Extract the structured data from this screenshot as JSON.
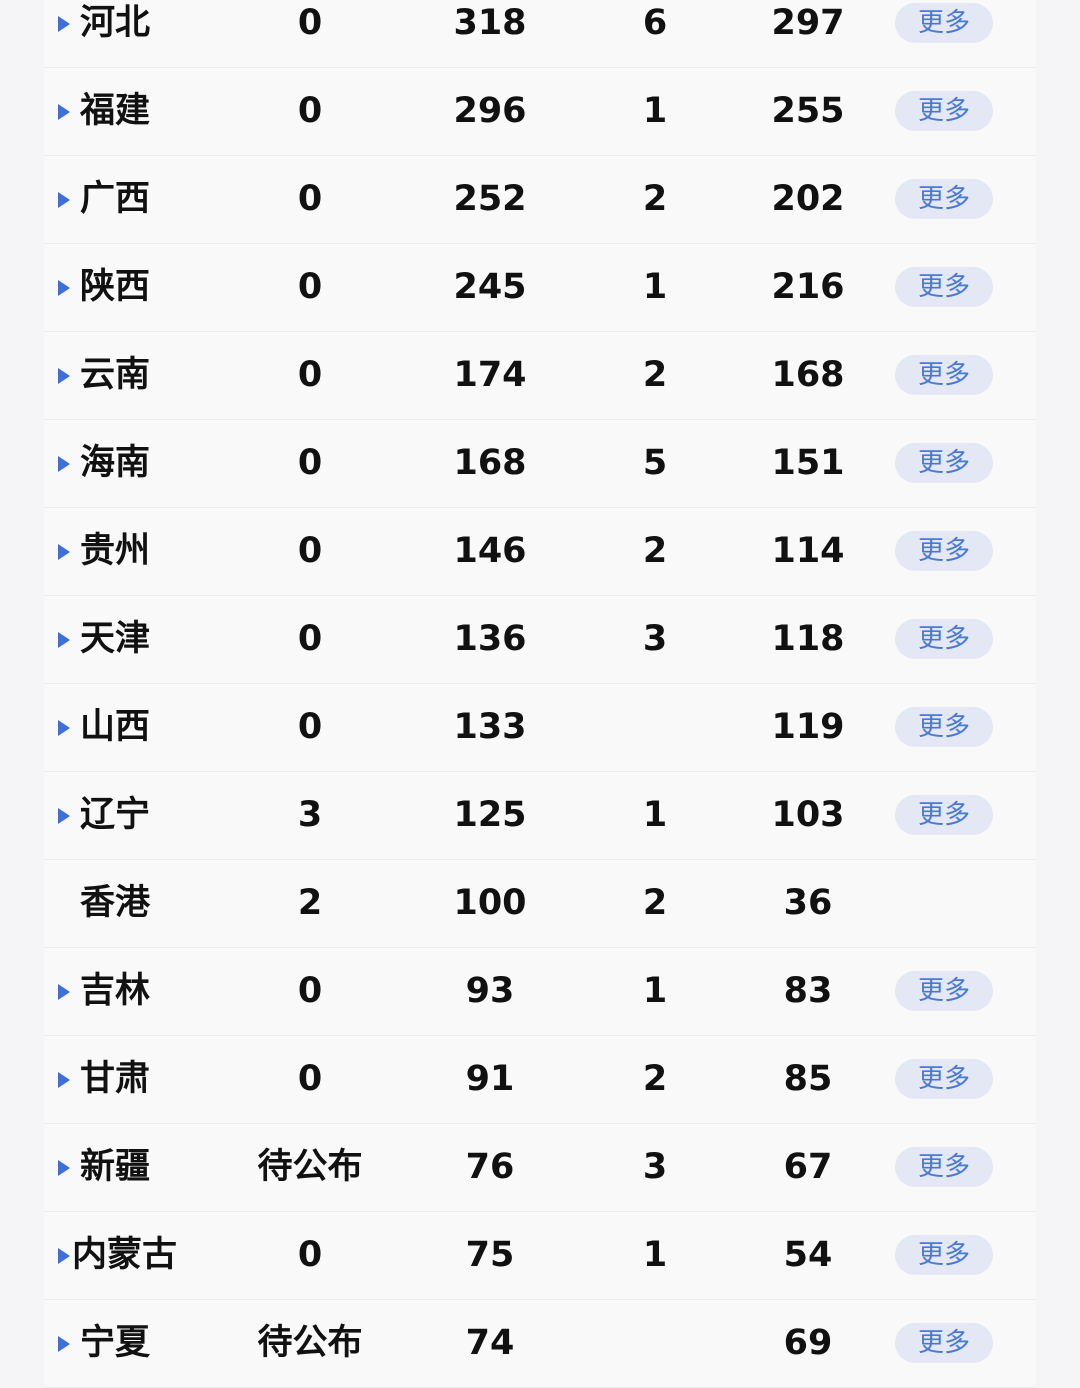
{
  "colors": {
    "arrow": "#3f6fd6",
    "more_bg": "#e3e8f4",
    "more_text": "#4a78d6"
  },
  "rows": [
    {
      "name": "河北",
      "c1": "0",
      "c2": "318",
      "c3": "6",
      "c4": "297",
      "more": "更多",
      "expandable": true
    },
    {
      "name": "福建",
      "c1": "0",
      "c2": "296",
      "c3": "1",
      "c4": "255",
      "more": "更多",
      "expandable": true
    },
    {
      "name": "广西",
      "c1": "0",
      "c2": "252",
      "c3": "2",
      "c4": "202",
      "more": "更多",
      "expandable": true
    },
    {
      "name": "陕西",
      "c1": "0",
      "c2": "245",
      "c3": "1",
      "c4": "216",
      "more": "更多",
      "expandable": true
    },
    {
      "name": "云南",
      "c1": "0",
      "c2": "174",
      "c3": "2",
      "c4": "168",
      "more": "更多",
      "expandable": true
    },
    {
      "name": "海南",
      "c1": "0",
      "c2": "168",
      "c3": "5",
      "c4": "151",
      "more": "更多",
      "expandable": true
    },
    {
      "name": "贵州",
      "c1": "0",
      "c2": "146",
      "c3": "2",
      "c4": "114",
      "more": "更多",
      "expandable": true
    },
    {
      "name": "天津",
      "c1": "0",
      "c2": "136",
      "c3": "3",
      "c4": "118",
      "more": "更多",
      "expandable": true
    },
    {
      "name": "山西",
      "c1": "0",
      "c2": "133",
      "c3": "",
      "c4": "119",
      "more": "更多",
      "expandable": true
    },
    {
      "name": "辽宁",
      "c1": "3",
      "c2": "125",
      "c3": "1",
      "c4": "103",
      "more": "更多",
      "expandable": true
    },
    {
      "name": "香港",
      "c1": "2",
      "c2": "100",
      "c3": "2",
      "c4": "36",
      "more": "",
      "expandable": false
    },
    {
      "name": "吉林",
      "c1": "0",
      "c2": "93",
      "c3": "1",
      "c4": "83",
      "more": "更多",
      "expandable": true
    },
    {
      "name": "甘肃",
      "c1": "0",
      "c2": "91",
      "c3": "2",
      "c4": "85",
      "more": "更多",
      "expandable": true
    },
    {
      "name": "新疆",
      "c1": "待公布",
      "c2": "76",
      "c3": "3",
      "c4": "67",
      "more": "更多",
      "expandable": true
    },
    {
      "name": "内蒙古",
      "c1": "0",
      "c2": "75",
      "c3": "1",
      "c4": "54",
      "more": "更多",
      "expandable": true
    },
    {
      "name": "宁夏",
      "c1": "待公布",
      "c2": "74",
      "c3": "",
      "c4": "69",
      "more": "更多",
      "expandable": true
    }
  ]
}
